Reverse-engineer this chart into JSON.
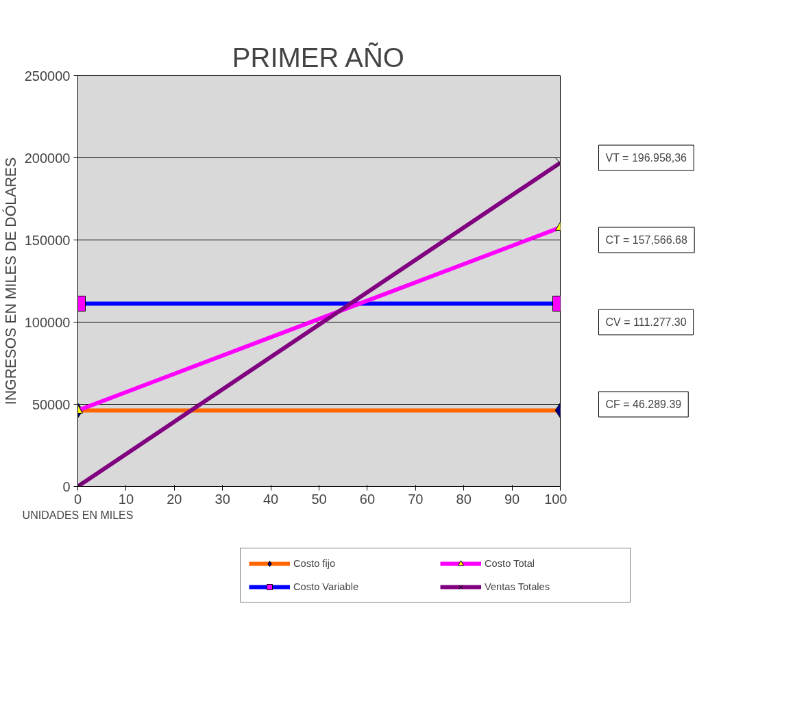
{
  "chart_data": {
    "type": "line",
    "title": "PRIMER AÑO",
    "xlabel": "UNIDADES EN MILES",
    "ylabel": "INGRESOS EN MILES DE DÓLARES",
    "x": [
      0,
      100
    ],
    "series": [
      {
        "name": "Costo fijo",
        "color": "#ff6600",
        "marker": "diamond",
        "colors": [
          "#000080",
          "#000080"
        ],
        "values": [
          46289.39,
          46289.39
        ]
      },
      {
        "name": "Costo Variable",
        "color": "#0000ff",
        "marker": "square",
        "colors": [
          "#ff00ff",
          "#ff00ff"
        ],
        "values": [
          111277.3,
          111277.3
        ]
      },
      {
        "name": "Costo Total",
        "color": "#ff00ff",
        "marker": "triangle",
        "colors": [
          "#ffff00",
          "#ffff00"
        ],
        "values": [
          46289.39,
          157566.68
        ]
      },
      {
        "name": "Ventas Totales",
        "color": "#800080",
        "marker": "cross",
        "colors": [
          "#000000",
          "#000000"
        ],
        "values": [
          0,
          196958.36
        ]
      }
    ],
    "annotations": [
      "VT = 196.958,36",
      "CT = 157,566.68",
      "CV = 111.277.30",
      "CF = 46.289.39"
    ],
    "xlim": [
      0,
      100
    ],
    "xticks": [
      0,
      10,
      20,
      30,
      40,
      50,
      60,
      70,
      80,
      90,
      100
    ],
    "ylim": [
      0,
      250000
    ],
    "yticks": [
      0,
      50000,
      100000,
      150000,
      200000,
      250000
    ],
    "grid": "y",
    "legend": "bottom"
  }
}
